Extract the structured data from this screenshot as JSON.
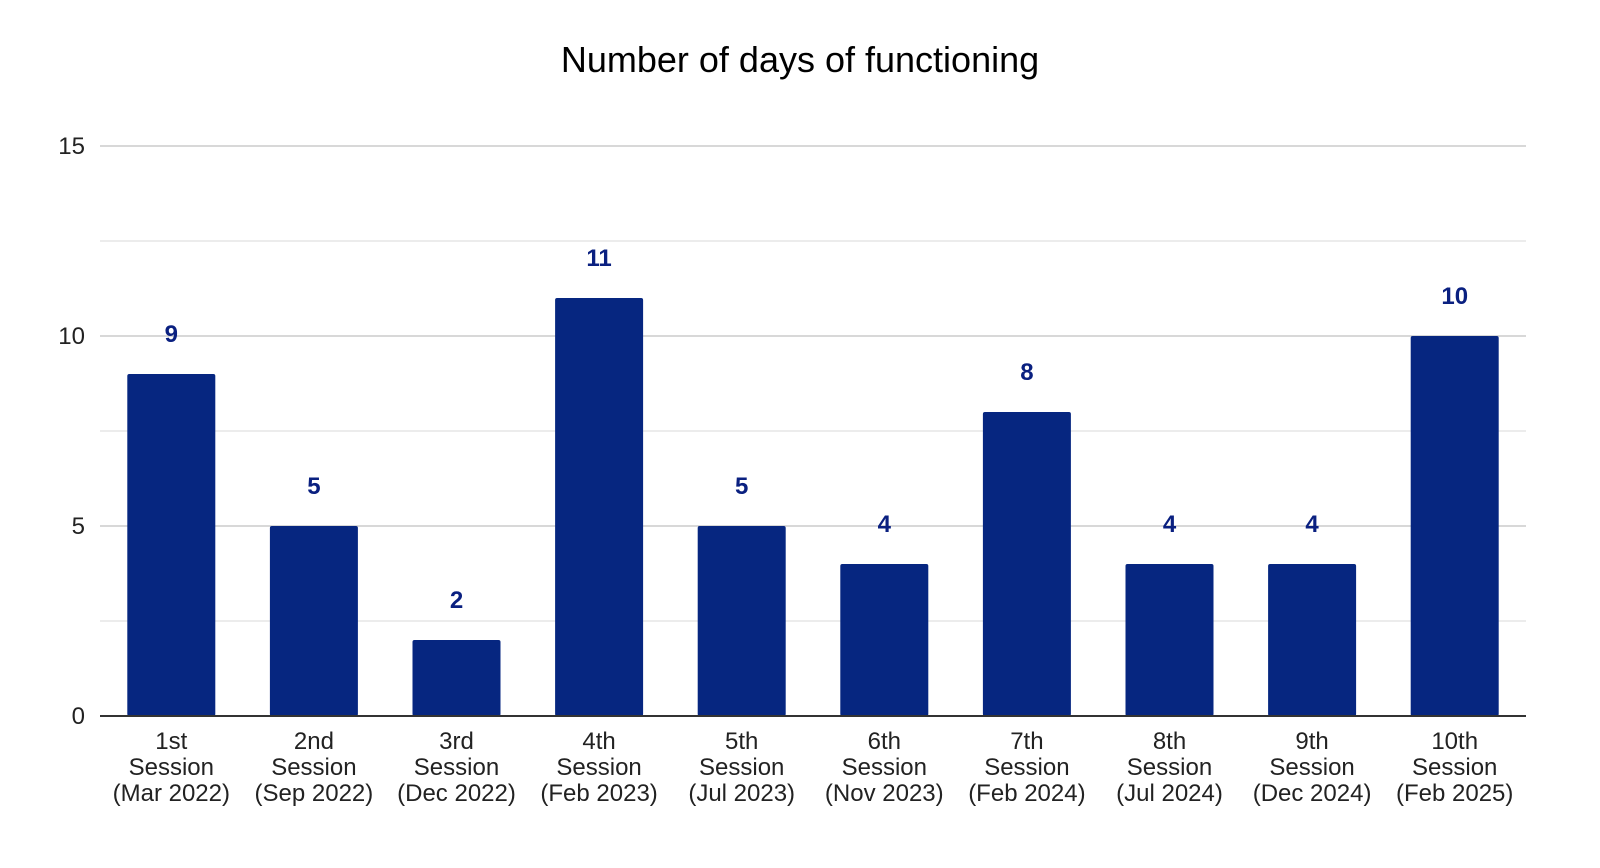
{
  "chart_data": {
    "type": "bar",
    "title": "Number of days of functioning",
    "xlabel": "",
    "ylabel": "",
    "categories": [
      [
        "1st",
        "Session",
        "(Mar 2022)"
      ],
      [
        "2nd",
        "Session",
        "(Sep 2022)"
      ],
      [
        "3rd",
        "Session",
        "(Dec 2022)"
      ],
      [
        "4th",
        "Session",
        "(Feb 2023)"
      ],
      [
        "5th",
        "Session",
        "(Jul 2023)"
      ],
      [
        "6th",
        "Session",
        "(Nov 2023)"
      ],
      [
        "7th",
        "Session",
        "(Feb 2024)"
      ],
      [
        "8th",
        "Session",
        "(Jul 2024)"
      ],
      [
        "9th",
        "Session",
        "(Dec 2024)"
      ],
      [
        "10th",
        "Session",
        "(Feb 2025)"
      ]
    ],
    "values": [
      9,
      5,
      2,
      11,
      5,
      4,
      8,
      4,
      4,
      10
    ],
    "ylim": [
      0,
      15
    ],
    "yticks": [
      0,
      5,
      10,
      15
    ],
    "minor_gridlines": [
      2.5,
      7.5,
      12.5
    ],
    "grid": true,
    "legend": "none",
    "data_labels": true,
    "colors": {
      "bar": "#062680",
      "data_label": "#0a2080",
      "major_grid": "#cccccc",
      "minor_grid": "#e6e6e6",
      "axis_line": "#333333"
    }
  }
}
